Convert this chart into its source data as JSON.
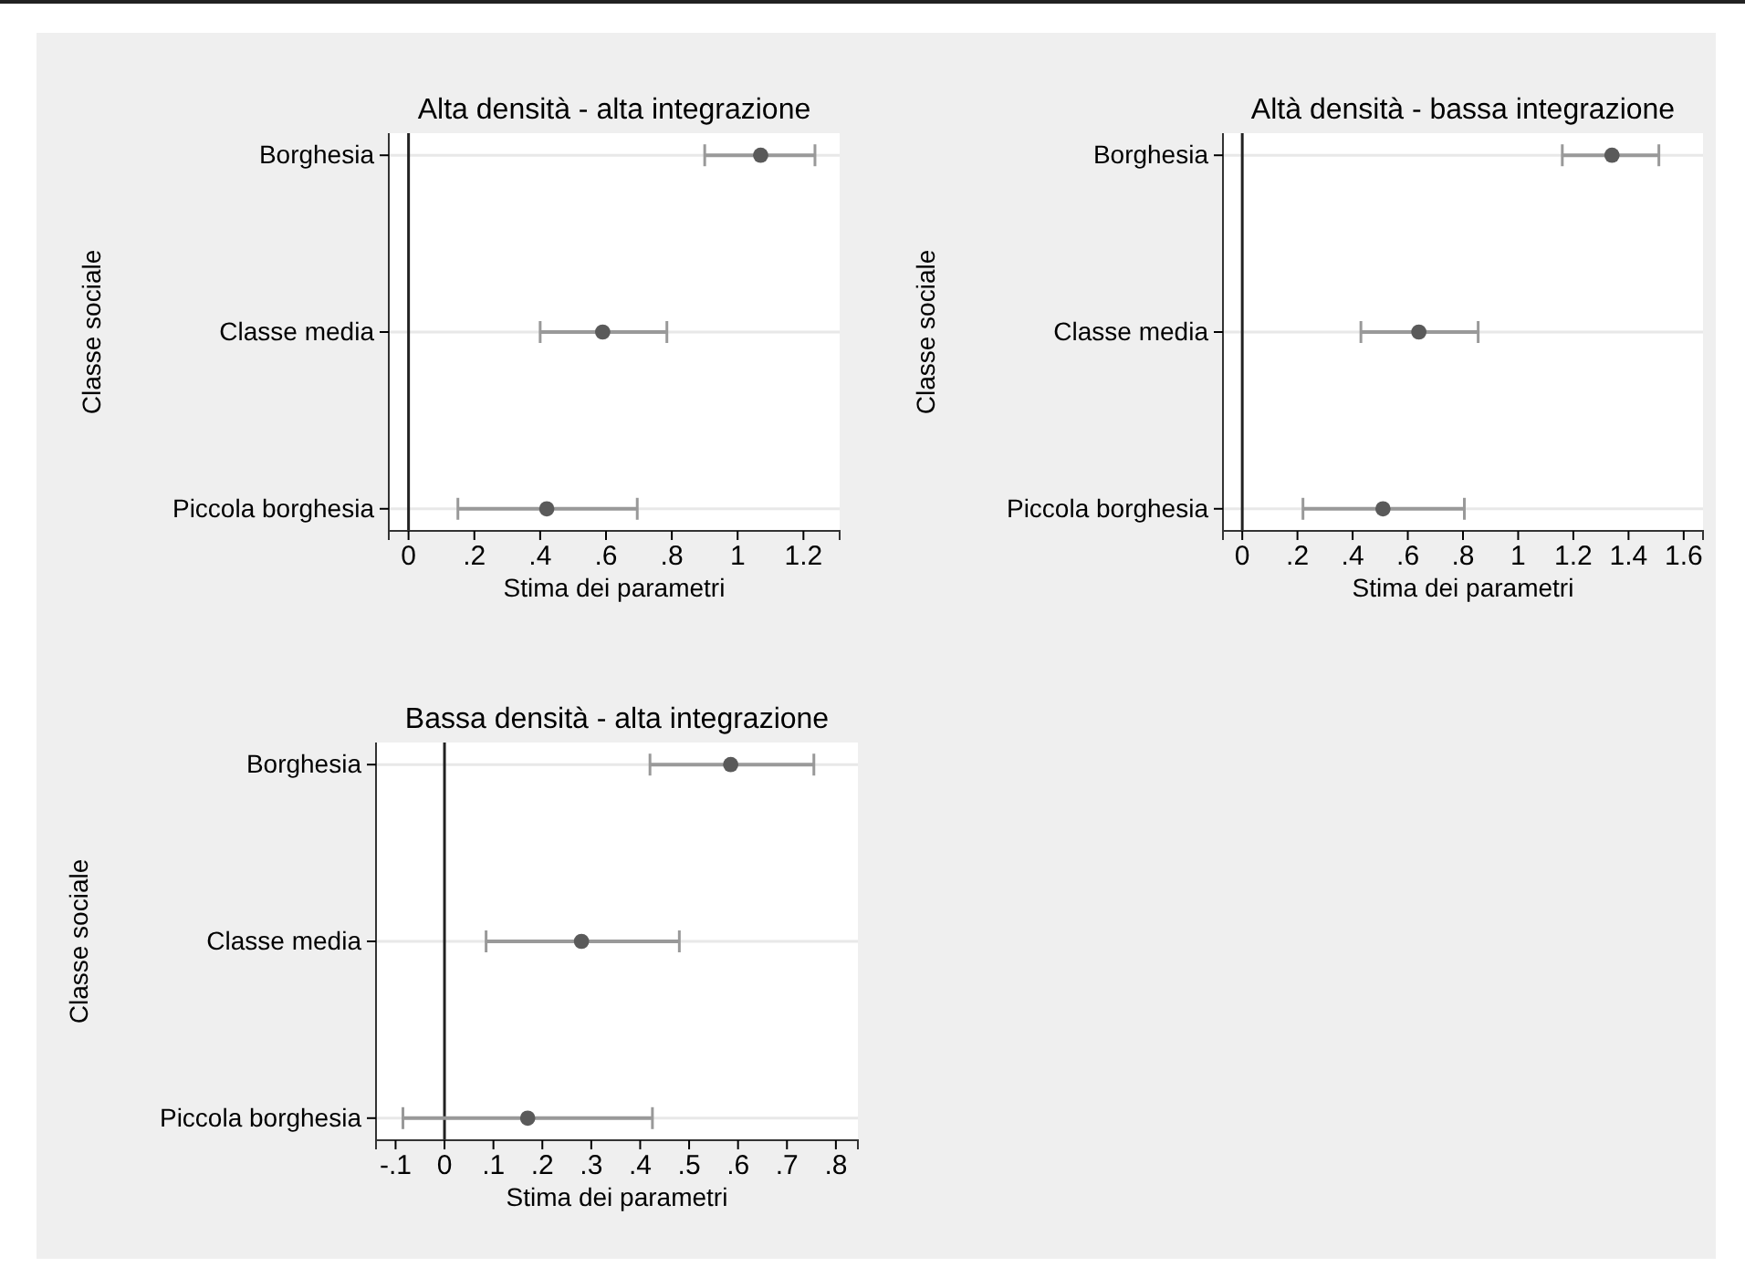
{
  "chart_data": [
    {
      "type": "scatter",
      "orientation": "horizontal",
      "title": "Alta densità - alta integrazione",
      "xlabel": "Stima dei parametri",
      "ylabel": "Classe sociale",
      "categories": [
        "Borghesia",
        "Classe media",
        "Piccola borghesia"
      ],
      "values": [
        1.07,
        0.59,
        0.42
      ],
      "errors": [
        [
          0.9,
          1.235
        ],
        [
          0.4,
          0.785
        ],
        [
          0.15,
          0.695
        ]
      ],
      "color": "#5a5a5a",
      "marker": "circle",
      "grid": "y",
      "xlim": [
        -0.06,
        1.31
      ],
      "xticks": [
        0,
        {
          "value": 0.2,
          "label": ".2"
        },
        {
          "value": 0.4,
          "label": ".4"
        },
        {
          "value": 0.6,
          "label": ".6"
        },
        {
          "value": 0.8,
          "label": ".8"
        },
        1,
        1.2
      ],
      "ref_lines": [
        {
          "axis": "x",
          "value": 0
        }
      ]
    },
    {
      "type": "scatter",
      "orientation": "horizontal",
      "title": "Altà densità - bassa integrazione",
      "xlabel": "Stima dei parametri",
      "ylabel": "Classe sociale",
      "categories": [
        "Borghesia",
        "Classe media",
        "Piccola borghesia"
      ],
      "values": [
        1.34,
        0.64,
        0.51
      ],
      "errors": [
        [
          1.16,
          1.51
        ],
        [
          0.43,
          0.855
        ],
        [
          0.22,
          0.805
        ]
      ],
      "color": "#5a5a5a",
      "marker": "circle",
      "grid": "y",
      "xlim": [
        -0.07,
        1.67
      ],
      "xticks": [
        0,
        {
          "value": 0.2,
          "label": ".2"
        },
        {
          "value": 0.4,
          "label": ".4"
        },
        {
          "value": 0.6,
          "label": ".6"
        },
        {
          "value": 0.8,
          "label": ".8"
        },
        1,
        1.2,
        1.4,
        1.6
      ],
      "ref_lines": [
        {
          "axis": "x",
          "value": 0
        }
      ]
    },
    {
      "type": "scatter",
      "orientation": "horizontal",
      "title": "Bassa densità - alta integrazione",
      "xlabel": "Stima dei parametri",
      "ylabel": "Classe sociale",
      "categories": [
        "Borghesia",
        "Classe media",
        "Piccola borghesia"
      ],
      "values": [
        0.585,
        0.28,
        0.17
      ],
      "errors": [
        [
          0.42,
          0.755
        ],
        [
          0.085,
          0.48
        ],
        [
          -0.085,
          0.425
        ]
      ],
      "color": "#5a5a5a",
      "marker": "circle",
      "grid": "y",
      "xlim": [
        -0.14,
        0.845
      ],
      "xticks": [
        {
          "value": -0.1,
          "label": "-.1"
        },
        0,
        {
          "value": 0.1,
          "label": ".1"
        },
        {
          "value": 0.2,
          "label": ".2"
        },
        {
          "value": 0.3,
          "label": ".3"
        },
        {
          "value": 0.4,
          "label": ".4"
        },
        {
          "value": 0.5,
          "label": ".5"
        },
        {
          "value": 0.6,
          "label": ".6"
        },
        {
          "value": 0.7,
          "label": ".7"
        },
        {
          "value": 0.8,
          "label": ".8"
        }
      ],
      "ref_lines": [
        {
          "axis": "x",
          "value": 0
        }
      ]
    }
  ]
}
